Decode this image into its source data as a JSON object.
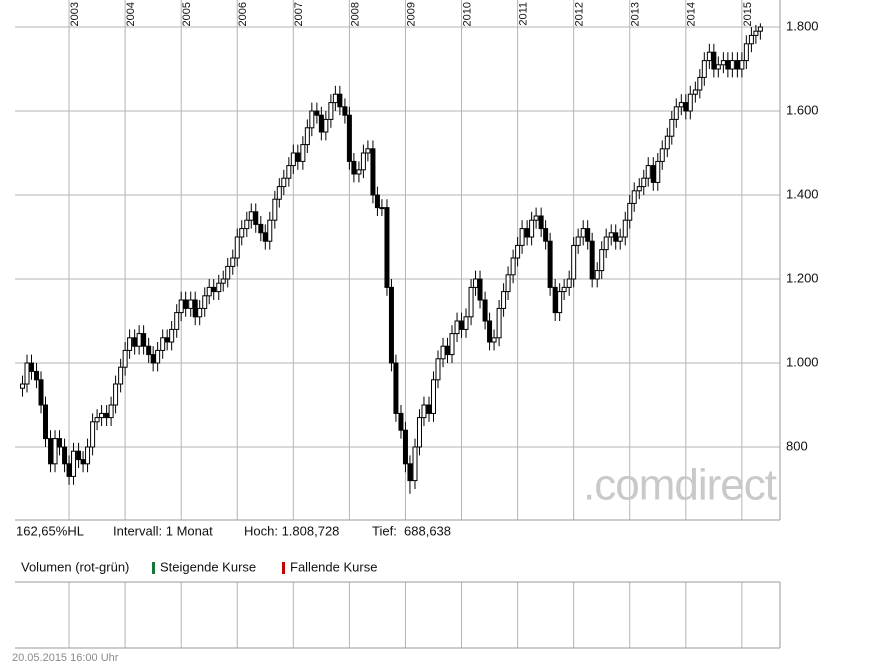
{
  "chart_data": {
    "type": "candlestick",
    "watermark": ".comdirect",
    "xlim": [
      2002.036,
      2015.68
    ],
    "xticks": [
      2003,
      2004,
      2005,
      2006,
      2007,
      2008,
      2009,
      2010,
      2011,
      2012,
      2013,
      2014,
      2015
    ],
    "ylim": [
      626.2,
      1864.3
    ],
    "yticks": [
      {
        "value": 1800,
        "label": "1.800"
      },
      {
        "value": 1600,
        "label": "1.600"
      },
      {
        "value": 1400,
        "label": "1.400"
      },
      {
        "value": 1200,
        "label": "1.200"
      },
      {
        "value": 1000,
        "label": "1.000"
      },
      800
    ],
    "grid": true,
    "rising_color": "#ffffff",
    "falling_color": "#000000",
    "x": [
      2002.17,
      2002.25,
      2002.33,
      2002.42,
      2002.5,
      2002.58,
      2002.67,
      2002.75,
      2002.83,
      2002.92,
      2003,
      2003.08,
      2003.17,
      2003.25,
      2003.33,
      2003.42,
      2003.5,
      2003.58,
      2003.67,
      2003.75,
      2003.83,
      2003.92,
      2004,
      2004.08,
      2004.17,
      2004.25,
      2004.33,
      2004.42,
      2004.5,
      2004.58,
      2004.67,
      2004.75,
      2004.83,
      2004.92,
      2005,
      2005.08,
      2005.17,
      2005.25,
      2005.33,
      2005.42,
      2005.5,
      2005.58,
      2005.67,
      2005.75,
      2005.83,
      2005.92,
      2006,
      2006.08,
      2006.17,
      2006.25,
      2006.33,
      2006.42,
      2006.5,
      2006.58,
      2006.67,
      2006.75,
      2006.83,
      2006.92,
      2007,
      2007.08,
      2007.17,
      2007.25,
      2007.33,
      2007.42,
      2007.5,
      2007.58,
      2007.67,
      2007.75,
      2007.83,
      2007.92,
      2008,
      2008.08,
      2008.17,
      2008.25,
      2008.33,
      2008.42,
      2008.5,
      2008.58,
      2008.67,
      2008.75,
      2008.83,
      2008.92,
      2009,
      2009.08,
      2009.17,
      2009.25,
      2009.33,
      2009.42,
      2009.5,
      2009.58,
      2009.67,
      2009.75,
      2009.83,
      2009.92,
      2010,
      2010.08,
      2010.17,
      2010.25,
      2010.33,
      2010.42,
      2010.5,
      2010.58,
      2010.67,
      2010.75,
      2010.83,
      2010.92,
      2011,
      2011.08,
      2011.17,
      2011.25,
      2011.33,
      2011.42,
      2011.5,
      2011.58,
      2011.67,
      2011.75,
      2011.83,
      2011.92,
      2012,
      2012.08,
      2012.17,
      2012.25,
      2012.33,
      2012.42,
      2012.5,
      2012.58,
      2012.67,
      2012.75,
      2012.83,
      2012.92,
      2013,
      2013.08,
      2013.17,
      2013.25,
      2013.33,
      2013.42,
      2013.5,
      2013.58,
      2013.67,
      2013.75,
      2013.83,
      2013.92,
      2014,
      2014.08,
      2014.17,
      2014.25,
      2014.33,
      2014.42,
      2014.5,
      2014.58,
      2014.67,
      2014.75,
      2014.83,
      2014.92,
      2015,
      2015.08,
      2015.17,
      2015.25,
      2015.33
    ],
    "open": [
      940,
      950,
      1000,
      980,
      960,
      900,
      820,
      760,
      820,
      800,
      760,
      730,
      790,
      770,
      760,
      800,
      860,
      870,
      880,
      870,
      900,
      950,
      990,
      1030,
      1060,
      1040,
      1070,
      1040,
      1020,
      1000,
      1030,
      1060,
      1050,
      1080,
      1120,
      1150,
      1130,
      1150,
      1110,
      1130,
      1160,
      1180,
      1170,
      1190,
      1200,
      1230,
      1250,
      1300,
      1320,
      1340,
      1360,
      1330,
      1310,
      1290,
      1340,
      1390,
      1420,
      1440,
      1470,
      1500,
      1480,
      1520,
      1560,
      1600,
      1590,
      1550,
      1580,
      1620,
      1640,
      1610,
      1590,
      1480,
      1450,
      1460,
      1500,
      1510,
      1400,
      1370,
      1370,
      1180,
      1000,
      880,
      840,
      760,
      720,
      800,
      870,
      900,
      880,
      960,
      1010,
      1040,
      1020,
      1070,
      1100,
      1080,
      1110,
      1180,
      1200,
      1150,
      1100,
      1050,
      1060,
      1130,
      1170,
      1210,
      1250,
      1280,
      1320,
      1300,
      1340,
      1350,
      1320,
      1290,
      1180,
      1120,
      1170,
      1180,
      1200,
      1280,
      1300,
      1320,
      1290,
      1200,
      1220,
      1270,
      1300,
      1310,
      1290,
      1300,
      1340,
      1380,
      1410,
      1420,
      1440,
      1470,
      1430,
      1480,
      1510,
      1540,
      1580,
      1610,
      1620,
      1600,
      1640,
      1650,
      1680,
      1720,
      1740,
      1700,
      1710,
      1720,
      1700,
      1720,
      1700,
      1720,
      1760,
      1780,
      1790
    ],
    "high": [
      970,
      1020,
      1020,
      1000,
      980,
      920,
      840,
      840,
      840,
      820,
      780,
      810,
      810,
      790,
      820,
      880,
      890,
      900,
      900,
      920,
      970,
      1010,
      1050,
      1080,
      1080,
      1090,
      1090,
      1060,
      1040,
      1050,
      1080,
      1080,
      1100,
      1140,
      1170,
      1170,
      1170,
      1170,
      1150,
      1180,
      1200,
      1200,
      1210,
      1220,
      1250,
      1270,
      1320,
      1340,
      1360,
      1380,
      1380,
      1350,
      1330,
      1360,
      1410,
      1440,
      1460,
      1490,
      1520,
      1520,
      1540,
      1580,
      1620,
      1620,
      1610,
      1600,
      1640,
      1660,
      1660,
      1630,
      1610,
      1500,
      1480,
      1520,
      1530,
      1530,
      1420,
      1390,
      1390,
      1200,
      1020,
      900,
      860,
      780,
      820,
      890,
      920,
      920,
      980,
      1030,
      1060,
      1060,
      1090,
      1120,
      1120,
      1130,
      1200,
      1220,
      1220,
      1170,
      1120,
      1080,
      1150,
      1190,
      1230,
      1270,
      1300,
      1340,
      1340,
      1360,
      1370,
      1370,
      1340,
      1310,
      1200,
      1190,
      1200,
      1220,
      1300,
      1320,
      1340,
      1340,
      1310,
      1240,
      1290,
      1320,
      1330,
      1330,
      1320,
      1360,
      1400,
      1430,
      1440,
      1460,
      1490,
      1490,
      1500,
      1530,
      1560,
      1600,
      1630,
      1640,
      1640,
      1660,
      1670,
      1700,
      1740,
      1760,
      1760,
      1730,
      1740,
      1740,
      1740,
      1740,
      1740,
      1780,
      1800,
      1805,
      1808.728
    ],
    "low": [
      920,
      930,
      960,
      940,
      880,
      800,
      740,
      740,
      780,
      740,
      710,
      710,
      750,
      740,
      740,
      780,
      840,
      850,
      850,
      850,
      880,
      930,
      970,
      1010,
      1020,
      1020,
      1020,
      1000,
      980,
      980,
      1010,
      1030,
      1030,
      1060,
      1100,
      1110,
      1110,
      1090,
      1090,
      1110,
      1140,
      1150,
      1150,
      1170,
      1180,
      1210,
      1230,
      1280,
      1300,
      1320,
      1310,
      1290,
      1270,
      1270,
      1320,
      1370,
      1400,
      1420,
      1450,
      1460,
      1460,
      1500,
      1540,
      1570,
      1530,
      1530,
      1560,
      1600,
      1590,
      1570,
      1460,
      1430,
      1430,
      1440,
      1480,
      1380,
      1350,
      1350,
      1160,
      980,
      860,
      820,
      740,
      688.638,
      700,
      780,
      850,
      860,
      860,
      940,
      990,
      1000,
      1000,
      1050,
      1060,
      1060,
      1090,
      1160,
      1130,
      1080,
      1030,
      1030,
      1040,
      1110,
      1150,
      1190,
      1230,
      1260,
      1280,
      1280,
      1320,
      1300,
      1270,
      1160,
      1100,
      1100,
      1150,
      1160,
      1180,
      1260,
      1280,
      1270,
      1180,
      1180,
      1200,
      1250,
      1280,
      1270,
      1270,
      1280,
      1320,
      1360,
      1390,
      1400,
      1420,
      1410,
      1410,
      1460,
      1490,
      1520,
      1560,
      1590,
      1580,
      1580,
      1620,
      1630,
      1660,
      1700,
      1680,
      1680,
      1690,
      1680,
      1680,
      1680,
      1680,
      1700,
      1740,
      1760,
      1770
    ],
    "close": [
      950,
      1000,
      980,
      960,
      900,
      820,
      760,
      820,
      800,
      760,
      730,
      790,
      770,
      760,
      800,
      860,
      870,
      880,
      870,
      900,
      950,
      990,
      1030,
      1060,
      1040,
      1070,
      1040,
      1020,
      1000,
      1030,
      1060,
      1050,
      1080,
      1120,
      1150,
      1130,
      1150,
      1110,
      1130,
      1160,
      1180,
      1170,
      1190,
      1200,
      1230,
      1250,
      1300,
      1320,
      1340,
      1360,
      1330,
      1310,
      1290,
      1340,
      1390,
      1420,
      1440,
      1470,
      1500,
      1480,
      1520,
      1560,
      1600,
      1590,
      1550,
      1580,
      1620,
      1640,
      1610,
      1590,
      1480,
      1450,
      1460,
      1500,
      1510,
      1400,
      1370,
      1370,
      1180,
      1000,
      880,
      840,
      760,
      720,
      800,
      870,
      900,
      880,
      960,
      1010,
      1040,
      1020,
      1070,
      1100,
      1080,
      1110,
      1180,
      1200,
      1150,
      1100,
      1050,
      1060,
      1130,
      1170,
      1210,
      1250,
      1280,
      1320,
      1300,
      1340,
      1350,
      1320,
      1290,
      1180,
      1120,
      1170,
      1180,
      1200,
      1280,
      1300,
      1320,
      1290,
      1200,
      1220,
      1270,
      1300,
      1310,
      1290,
      1300,
      1340,
      1380,
      1410,
      1420,
      1440,
      1470,
      1430,
      1480,
      1510,
      1540,
      1580,
      1610,
      1620,
      1600,
      1640,
      1650,
      1680,
      1720,
      1740,
      1700,
      1710,
      1720,
      1700,
      1720,
      1700,
      1720,
      1760,
      1780,
      1790,
      1800
    ]
  },
  "stats": [
    "162,65%HL",
    "Intervall: 1 Monat",
    "Hoch: 1.808,728",
    "Tief:  688,638"
  ],
  "volume_legend": {
    "title": "Volumen (rot-grün)",
    "items": [
      {
        "label": "Steigende Kurse",
        "color": "#17773b"
      },
      {
        "label": "Fallende Kurse",
        "color": "#c40000"
      }
    ]
  },
  "timestamp": "20.05.2015 16:00 Uhr"
}
